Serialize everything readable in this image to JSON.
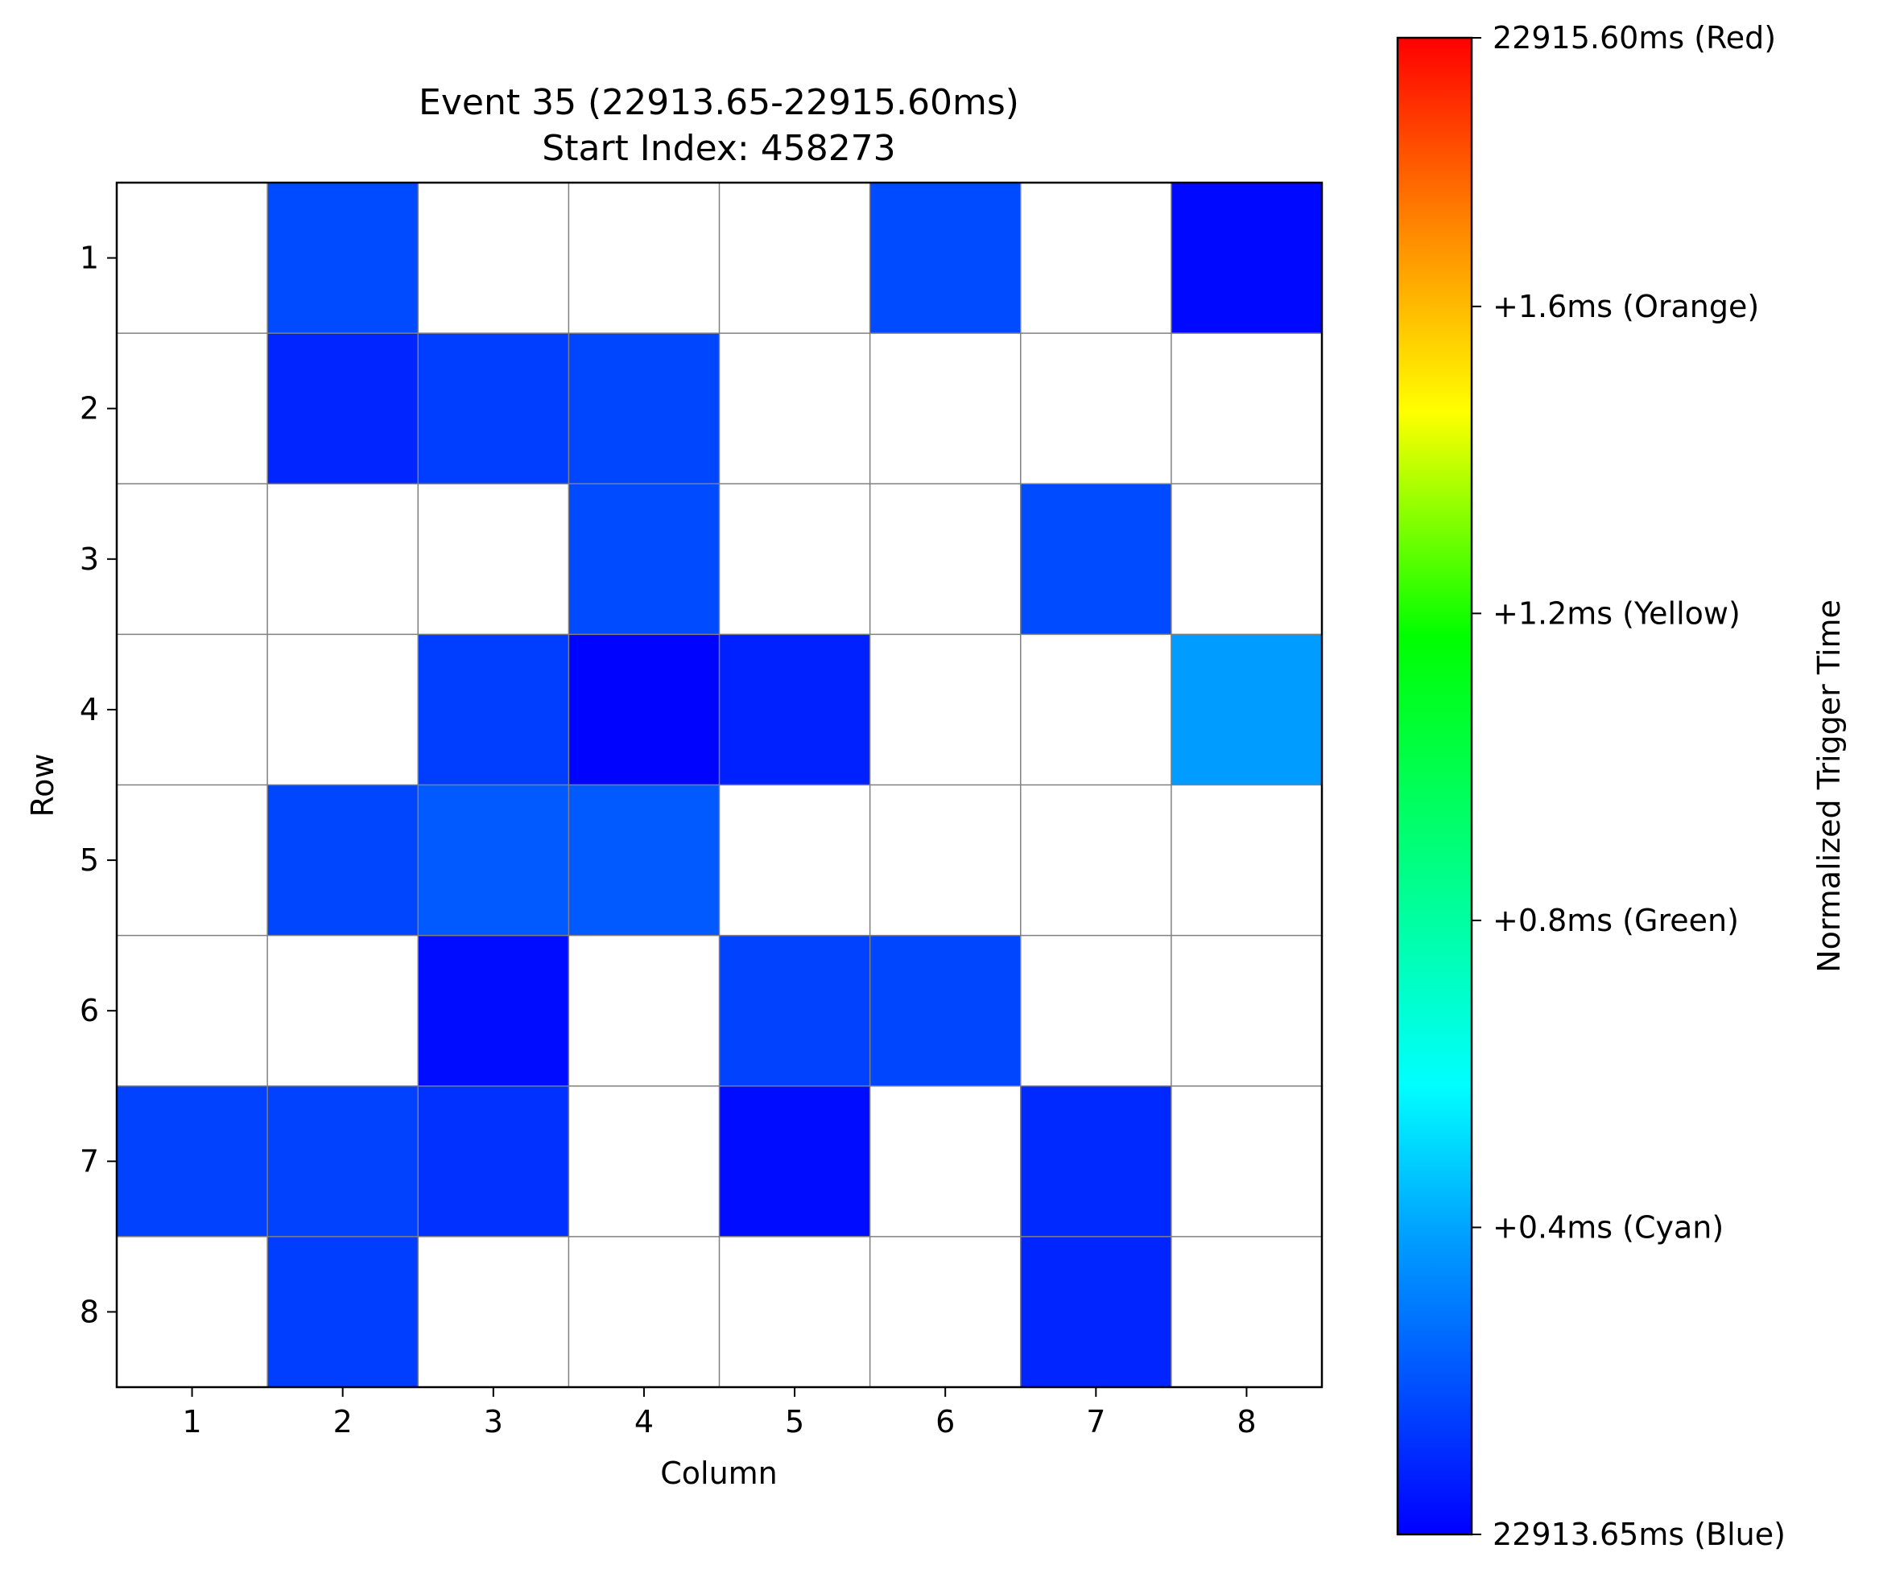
{
  "chart_data": {
    "type": "heatmap",
    "title": "Event 35 (22913.65-22915.60ms)",
    "subtitle": "Start Index: 458273",
    "xlabel": "Column",
    "ylabel": "Row",
    "x_categories": [
      "1",
      "2",
      "3",
      "4",
      "5",
      "6",
      "7",
      "8"
    ],
    "y_categories": [
      "1",
      "2",
      "3",
      "4",
      "5",
      "6",
      "7",
      "8"
    ],
    "grid": true,
    "colorbar": {
      "label": "Normalized Trigger Time",
      "colormap": "blue-cyan-green-yellow-orange-red",
      "range_ms": [
        0,
        1.95
      ],
      "tick_labels": [
        {
          "value": 0.0,
          "label": "22913.65ms (Blue)"
        },
        {
          "value": 0.4,
          "label": "+0.4ms (Cyan)"
        },
        {
          "value": 0.8,
          "label": "+0.8ms (Green)"
        },
        {
          "value": 1.2,
          "label": "+1.2ms (Yellow)"
        },
        {
          "value": 1.6,
          "label": "+1.6ms (Orange)"
        },
        {
          "value": 1.95,
          "label": "22915.60ms (Red)"
        }
      ]
    },
    "values": [
      [
        null,
        0.18,
        null,
        null,
        null,
        0.18,
        null,
        0.02
      ],
      [
        null,
        0.09,
        0.15,
        0.17,
        null,
        null,
        null,
        null
      ],
      [
        null,
        null,
        null,
        0.18,
        null,
        null,
        0.18,
        null
      ],
      [
        null,
        null,
        0.15,
        0.01,
        0.08,
        null,
        null,
        0.38
      ],
      [
        null,
        0.17,
        0.22,
        0.22,
        null,
        null,
        null,
        null
      ],
      [
        null,
        null,
        0.03,
        null,
        0.16,
        0.17,
        null,
        null
      ],
      [
        0.16,
        0.16,
        0.12,
        null,
        0.03,
        null,
        0.1,
        null
      ],
      [
        null,
        0.15,
        null,
        null,
        null,
        null,
        0.09,
        null
      ]
    ]
  }
}
